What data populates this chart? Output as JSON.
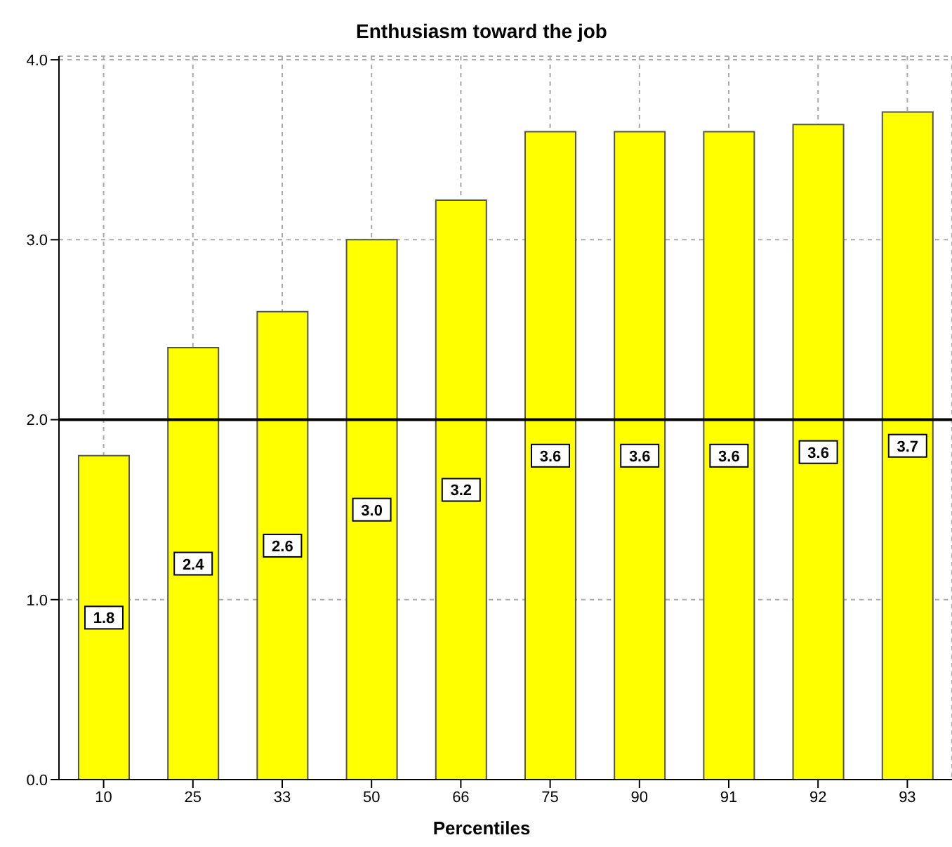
{
  "chart_data": {
    "type": "bar",
    "title": "Enthusiasm toward the job",
    "xlabel": "Percentiles",
    "categories": [
      "10",
      "25",
      "33",
      "50",
      "66",
      "75",
      "90",
      "91",
      "92",
      "93"
    ],
    "values": [
      1.8,
      2.4,
      2.6,
      3.0,
      3.22,
      3.6,
      3.6,
      3.6,
      3.64,
      3.71
    ],
    "value_labels": [
      "1.8",
      "2.4",
      "2.6",
      "3.0",
      "3.2",
      "3.6",
      "3.6",
      "3.6",
      "3.6",
      "3.7"
    ],
    "color": "#ffff00",
    "ylim": [
      0,
      4.02
    ],
    "yticks": [
      {
        "value": 0,
        "label": "0.0"
      },
      {
        "value": 1,
        "label": "1.0"
      },
      {
        "value": 2,
        "label": "2.0"
      },
      {
        "value": 3,
        "label": "3.0"
      },
      {
        "value": 4,
        "label": "4.0"
      }
    ],
    "grid": true,
    "ref_lines": [
      {
        "axis": "y",
        "value": 2,
        "color": "#000000"
      }
    ]
  }
}
